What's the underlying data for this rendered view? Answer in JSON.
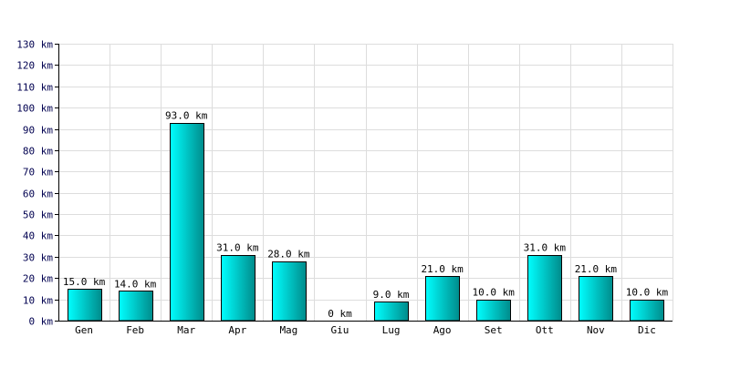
{
  "chart_data": {
    "type": "bar",
    "categories": [
      "Gen",
      "Feb",
      "Mar",
      "Apr",
      "Mag",
      "Giu",
      "Lug",
      "Ago",
      "Set",
      "Ott",
      "Nov",
      "Dic"
    ],
    "values": [
      15.0,
      14.0,
      93.0,
      31.0,
      28.0,
      0,
      9.0,
      21.0,
      10.0,
      31.0,
      21.0,
      10.0
    ],
    "value_labels": [
      "15.0 km",
      "14.0 km",
      "93.0 km",
      "31.0 km",
      "28.0 km",
      "0 km",
      "9.0 km",
      "21.0 km",
      "10.0 km",
      "31.0 km",
      "21.0 km",
      "10.0 km"
    ],
    "y_ticks": [
      "0 km",
      "10 km",
      "20 km",
      "30 km",
      "40 km",
      "50 km",
      "60 km",
      "70 km",
      "80 km",
      "90 km",
      "100 km",
      "110 km",
      "120 km",
      "130 km"
    ],
    "y_unit": "km",
    "ylim": [
      0,
      130
    ],
    "y_step": 10,
    "grid": true,
    "title": "",
    "xlabel": "",
    "ylabel": "",
    "colors": {
      "bar_light": "#00ffff",
      "bar_dark": "#008b8b",
      "bar_border": "#000000",
      "grid": "#dddddd",
      "axis": "#000000",
      "tick_text": "#000050"
    }
  }
}
